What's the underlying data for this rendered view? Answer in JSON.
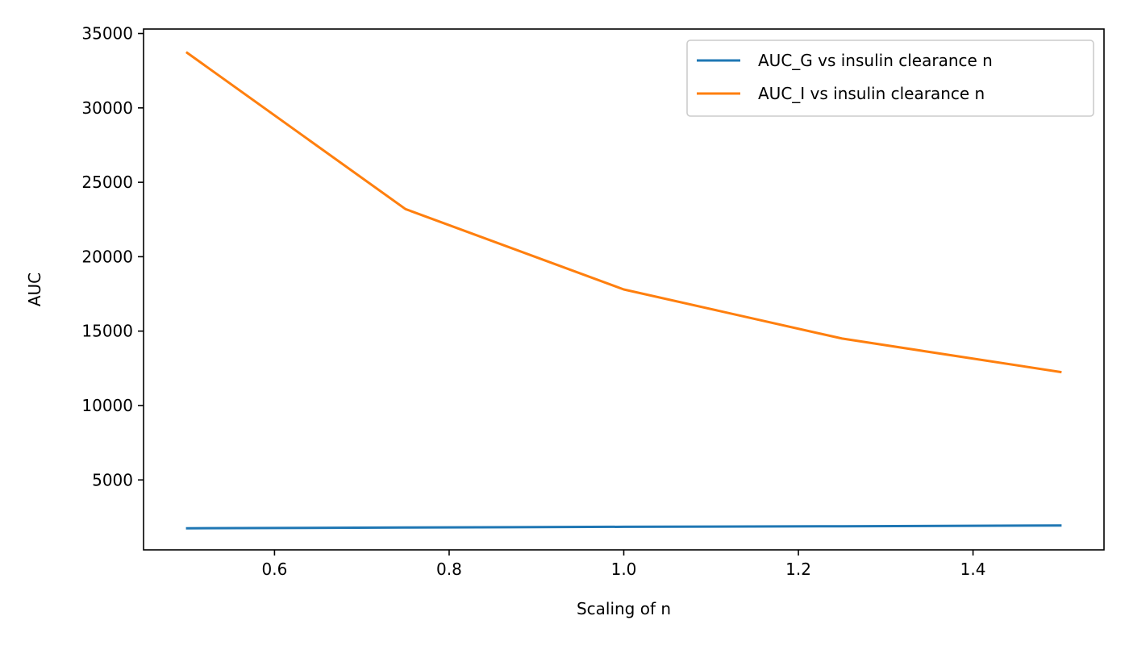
{
  "chart_data": {
    "type": "line",
    "title": "",
    "xlabel": "Scaling of n",
    "ylabel": "AUC",
    "xlim": [
      0.45,
      1.55
    ],
    "ylim": [
      300,
      35300
    ],
    "xticks": [
      0.6,
      0.8,
      1.0,
      1.2,
      1.4
    ],
    "xtick_labels": [
      "0.6",
      "0.8",
      "1.0",
      "1.2",
      "1.4"
    ],
    "yticks": [
      5000,
      10000,
      15000,
      20000,
      25000,
      30000,
      35000
    ],
    "ytick_labels": [
      "5000",
      "10000",
      "15000",
      "20000",
      "25000",
      "30000",
      "35000"
    ],
    "x": [
      0.5,
      0.75,
      1.0,
      1.25,
      1.5
    ],
    "grid": false,
    "legend": {
      "position": "upper right",
      "entries": [
        "AUC_G vs insulin clearance n",
        "AUC_I vs insulin clearance n"
      ]
    },
    "series": [
      {
        "name": "AUC_G vs insulin clearance n",
        "color": "#1f77b4",
        "values": [
          1750,
          1800,
          1850,
          1890,
          1940
        ]
      },
      {
        "name": "AUC_I vs insulin clearance n",
        "color": "#ff7f0e",
        "values": [
          33700,
          23200,
          17800,
          14500,
          12250
        ]
      }
    ]
  }
}
